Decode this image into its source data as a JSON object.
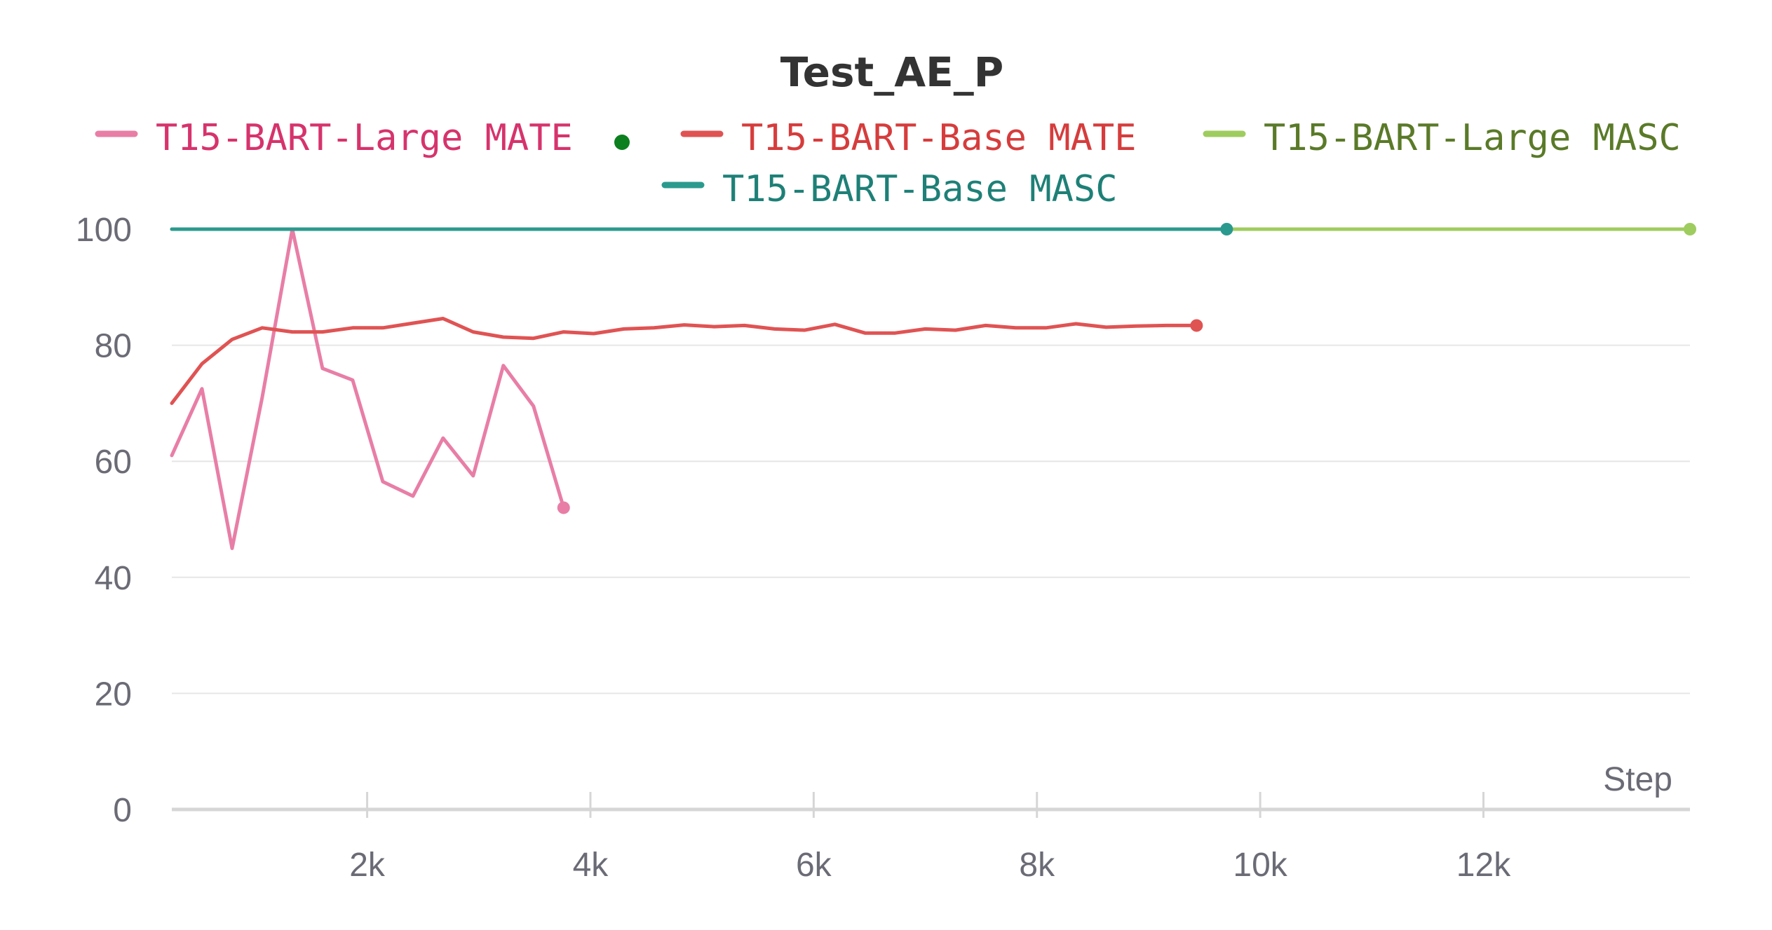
{
  "chart_data": {
    "type": "line",
    "title": "Test_AE_P",
    "xlabel": "Step",
    "ylabel": "",
    "xlim": [
      250,
      13850
    ],
    "ylim": [
      0,
      100
    ],
    "xticks": [
      2000,
      4000,
      6000,
      8000,
      10000,
      12000
    ],
    "xtick_labels": [
      "2k",
      "4k",
      "6k",
      "8k",
      "10k",
      "12k"
    ],
    "yticks": [
      0,
      20,
      40,
      60,
      80,
      100
    ],
    "ytick_labels": [
      "0",
      "20",
      "40",
      "60",
      "80",
      "100"
    ],
    "grid": true,
    "legend_position": "top",
    "legend": [
      {
        "label": "T15-BART-Large MATE",
        "color": "#e87ea6",
        "text_color": "#d6336c",
        "marker": "line"
      },
      {
        "label": "",
        "color": "#0c7f1f",
        "text_color": "#0c7f1f",
        "marker": "dot"
      },
      {
        "label": "T15-BART-Base MATE",
        "color": "#e05353",
        "text_color": "#d63c3c",
        "marker": "line"
      },
      {
        "label": "T15-BART-Large MASC",
        "color": "#9fcc5e",
        "text_color": "#5a7a28",
        "marker": "line"
      },
      {
        "label": "T15-BART-Base MASC",
        "color": "#2a9a8e",
        "text_color": "#1e8077",
        "marker": "line"
      }
    ],
    "series": [
      {
        "name": "T15-BART-Large MATE",
        "color": "#e87ea6",
        "x": [
          250,
          520,
          790,
          1060,
          1330,
          1600,
          1870,
          2140,
          2410,
          2680,
          2950,
          3220,
          3490,
          3760
        ],
        "y": [
          61,
          72.5,
          45,
          71,
          100,
          76,
          74,
          56.5,
          54,
          64,
          57.5,
          76.5,
          69.5,
          52
        ]
      },
      {
        "name": "T15-BART-Base MATE",
        "color": "#e05353",
        "x": [
          250,
          520,
          790,
          1060,
          1330,
          1600,
          1870,
          2140,
          2410,
          2680,
          2950,
          3220,
          3490,
          3760,
          4030,
          4300,
          4570,
          4840,
          5110,
          5380,
          5650,
          5920,
          6190,
          6460,
          6730,
          7000,
          7270,
          7540,
          7810,
          8080,
          8350,
          8620,
          8890,
          9160,
          9430
        ],
        "y": [
          70,
          76.8,
          81,
          83,
          82.3,
          82.3,
          83,
          83,
          83.8,
          84.6,
          82.3,
          81.4,
          81.2,
          82.3,
          82,
          82.8,
          83,
          83.5,
          83.2,
          83.4,
          82.8,
          82.6,
          83.6,
          82.1,
          82.1,
          82.8,
          82.6,
          83.4,
          83,
          83,
          83.7,
          83.1,
          83.3,
          83.4,
          83.4
        ]
      },
      {
        "name": "T15-BART-Large MASC",
        "color": "#9fcc5e",
        "x": [
          250,
          13850
        ],
        "y": [
          100,
          100
        ]
      },
      {
        "name": "T15-BART-Base MASC",
        "color": "#2a9a8e",
        "x": [
          250,
          9700
        ],
        "y": [
          100,
          100
        ]
      }
    ]
  }
}
